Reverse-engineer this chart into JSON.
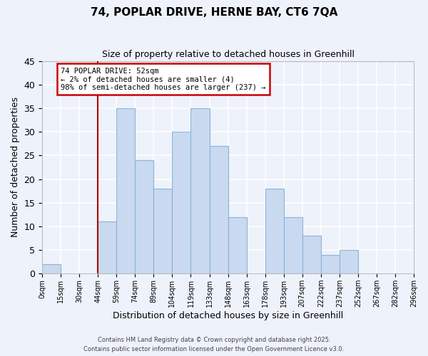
{
  "title": "74, POPLAR DRIVE, HERNE BAY, CT6 7QA",
  "subtitle": "Size of property relative to detached houses in Greenhill",
  "xlabel": "Distribution of detached houses by size in Greenhill",
  "ylabel": "Number of detached properties",
  "bar_color": "#c9d9f0",
  "bar_edge_color": "#8ab4d8",
  "background_color": "#eef2fb",
  "grid_color": "#ffffff",
  "bin_labels": [
    "0sqm",
    "15sqm",
    "30sqm",
    "44sqm",
    "59sqm",
    "74sqm",
    "89sqm",
    "104sqm",
    "119sqm",
    "133sqm",
    "148sqm",
    "163sqm",
    "178sqm",
    "193sqm",
    "207sqm",
    "222sqm",
    "237sqm",
    "252sqm",
    "267sqm",
    "282sqm",
    "296sqm"
  ],
  "counts": [
    2,
    0,
    0,
    11,
    35,
    24,
    18,
    30,
    35,
    27,
    12,
    0,
    18,
    12,
    8,
    4,
    5,
    0,
    0,
    0
  ],
  "n_bins": 20,
  "vline_bin": 3,
  "vline_color": "#aa0000",
  "annotation_title": "74 POPLAR DRIVE: 52sqm",
  "annotation_line1": "← 2% of detached houses are smaller (4)",
  "annotation_line2": "98% of semi-detached houses are larger (237) →",
  "annotation_box_color": "#ffffff",
  "annotation_box_edge_color": "#cc0000",
  "ylim": [
    0,
    45
  ],
  "yticks": [
    0,
    5,
    10,
    15,
    20,
    25,
    30,
    35,
    40,
    45
  ],
  "footer1": "Contains HM Land Registry data © Crown copyright and database right 2025.",
  "footer2": "Contains public sector information licensed under the Open Government Licence v3.0."
}
